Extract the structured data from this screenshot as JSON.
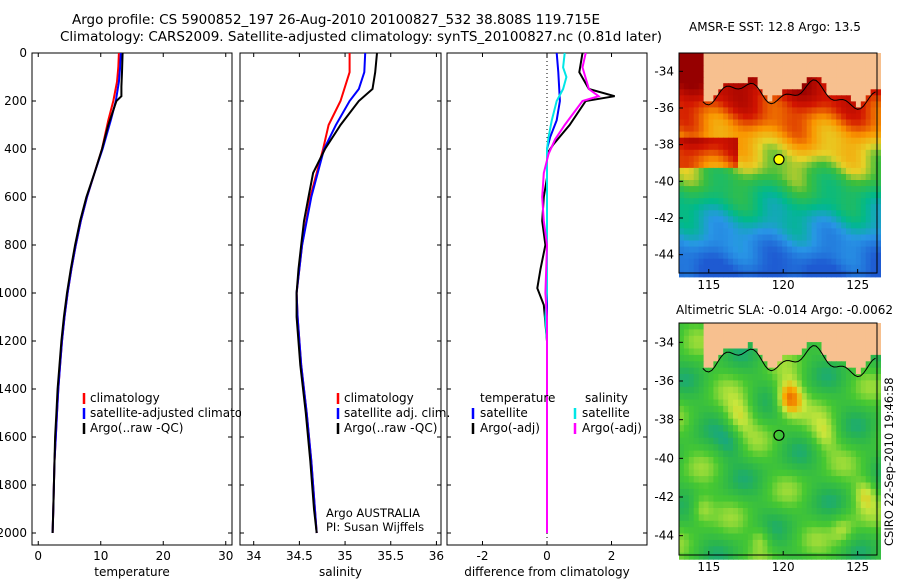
{
  "header": {
    "line1": "Argo profile: CS 5900852_197 26-Aug-2010 20100827_532 38.808S 119.715E",
    "line2": "Climatology: CARS2009. Satellite-adjusted climatology: synTS_20100827.nc (0.81d later)"
  },
  "map_titles": {
    "sst": "AMSR-E SST: 12.8 Argo: 13.5",
    "sla": "Altimetric SLA: -0.014 Argo: -0.0062"
  },
  "stamp": "CSIRO 22-Sep-2010 19:46:58",
  "colors": {
    "climatology": "#ff0000",
    "satellite": "#0000ff",
    "argo": "#000000",
    "sal_satellite": "#00e6e6",
    "sal_argo": "#ff00ff",
    "land": "#f7c08f"
  },
  "chart_data": [
    {
      "type": "line",
      "xlabel": "temperature",
      "ylabel": "",
      "xlim": [
        -1,
        31
      ],
      "ylim": [
        2050,
        0
      ],
      "xticks": [
        0,
        10,
        20,
        30
      ],
      "yticks": [
        0,
        200,
        400,
        600,
        800,
        1000,
        1200,
        1400,
        1600,
        1800,
        2000
      ],
      "legend": [
        "climatology",
        "satellite-adjusted climatology",
        "Argo(..raw -QC)"
      ],
      "series": [
        {
          "name": "climatology",
          "color": "#ff0000",
          "points": [
            [
              12.9,
              0
            ],
            [
              12.8,
              60
            ],
            [
              12.6,
              120
            ],
            [
              12.0,
              200
            ],
            [
              11.2,
              280
            ],
            [
              10.2,
              400
            ],
            [
              9.0,
              500
            ],
            [
              7.8,
              600
            ],
            [
              6.8,
              700
            ],
            [
              6.0,
              800
            ],
            [
              5.3,
              900
            ],
            [
              4.7,
              1000
            ],
            [
              4.2,
              1100
            ],
            [
              3.8,
              1200
            ],
            [
              3.5,
              1300
            ],
            [
              3.2,
              1400
            ],
            [
              3.0,
              1500
            ],
            [
              2.8,
              1600
            ],
            [
              2.6,
              1700
            ],
            [
              2.5,
              1800
            ],
            [
              2.4,
              1900
            ],
            [
              2.3,
              2000
            ]
          ]
        },
        {
          "name": "satellite-adjusted climatology",
          "color": "#0000ff",
          "points": [
            [
              13.2,
              0
            ],
            [
              13.1,
              60
            ],
            [
              12.9,
              120
            ],
            [
              12.4,
              200
            ],
            [
              11.6,
              280
            ],
            [
              10.3,
              400
            ],
            [
              9.0,
              500
            ],
            [
              7.8,
              600
            ],
            [
              6.8,
              700
            ],
            [
              6.0,
              800
            ],
            [
              5.3,
              900
            ],
            [
              4.7,
              1000
            ],
            [
              4.2,
              1100
            ],
            [
              3.8,
              1200
            ],
            [
              3.5,
              1300
            ],
            [
              3.2,
              1400
            ],
            [
              3.0,
              1500
            ],
            [
              2.8,
              1600
            ],
            [
              2.6,
              1700
            ],
            [
              2.5,
              1800
            ],
            [
              2.4,
              1900
            ],
            [
              2.3,
              2000
            ]
          ]
        },
        {
          "name": "Argo(..raw -QC)",
          "color": "#000000",
          "points": [
            [
              13.5,
              0
            ],
            [
              13.4,
              80
            ],
            [
              13.3,
              140
            ],
            [
              13.3,
              180
            ],
            [
              12.5,
              200
            ],
            [
              11.2,
              300
            ],
            [
              10.2,
              400
            ],
            [
              9.0,
              500
            ],
            [
              7.7,
              600
            ],
            [
              6.7,
              700
            ],
            [
              5.9,
              800
            ],
            [
              5.2,
              900
            ],
            [
              4.6,
              1000
            ],
            [
              4.1,
              1100
            ],
            [
              3.7,
              1200
            ],
            [
              3.4,
              1300
            ],
            [
              3.1,
              1400
            ],
            [
              2.9,
              1500
            ],
            [
              2.7,
              1600
            ],
            [
              2.6,
              1700
            ],
            [
              2.5,
              1800
            ],
            [
              2.4,
              1900
            ],
            [
              2.3,
              2000
            ]
          ]
        }
      ]
    },
    {
      "type": "line",
      "xlabel": "salinity",
      "ylabel": "",
      "xlim": [
        33.85,
        36.05
      ],
      "ylim": [
        2050,
        0
      ],
      "xticks": [
        34,
        34.5,
        35,
        35.5,
        36
      ],
      "yticks": [
        0,
        200,
        400,
        600,
        800,
        1000,
        1200,
        1400,
        1600,
        1800,
        2000
      ],
      "legend": [
        "climatology",
        "satellite adj. clim.",
        "Argo(..raw -QC)"
      ],
      "note1": "Argo AUSTRALIA",
      "note2": "PI: Susan Wijffels",
      "series": [
        {
          "name": "climatology",
          "color": "#ff0000",
          "points": [
            [
              35.05,
              0
            ],
            [
              35.05,
              80
            ],
            [
              34.95,
              200
            ],
            [
              34.82,
              300
            ],
            [
              34.76,
              400
            ],
            [
              34.62,
              600
            ],
            [
              34.53,
              800
            ],
            [
              34.47,
              1000
            ],
            [
              34.48,
              1100
            ],
            [
              34.52,
              1300
            ],
            [
              34.58,
              1500
            ],
            [
              34.63,
              1700
            ],
            [
              34.67,
              1900
            ],
            [
              34.69,
              2000
            ]
          ]
        },
        {
          "name": "satellite adj. clim.",
          "color": "#0000ff",
          "points": [
            [
              35.22,
              0
            ],
            [
              35.21,
              80
            ],
            [
              35.15,
              150
            ],
            [
              35.05,
              200
            ],
            [
              34.9,
              300
            ],
            [
              34.77,
              400
            ],
            [
              34.63,
              600
            ],
            [
              34.53,
              800
            ],
            [
              34.47,
              1000
            ],
            [
              34.48,
              1100
            ],
            [
              34.52,
              1300
            ],
            [
              34.58,
              1500
            ],
            [
              34.63,
              1700
            ],
            [
              34.67,
              1900
            ],
            [
              34.69,
              2000
            ]
          ]
        },
        {
          "name": "Argo(..raw -QC)",
          "color": "#000000",
          "points": [
            [
              35.35,
              0
            ],
            [
              35.33,
              80
            ],
            [
              35.3,
              150
            ],
            [
              35.15,
              200
            ],
            [
              34.95,
              300
            ],
            [
              34.78,
              400
            ],
            [
              34.65,
              500
            ],
            [
              34.6,
              600
            ],
            [
              34.55,
              700
            ],
            [
              34.52,
              800
            ],
            [
              34.49,
              900
            ],
            [
              34.47,
              1000
            ],
            [
              34.47,
              1100
            ],
            [
              34.51,
              1300
            ],
            [
              34.57,
              1500
            ],
            [
              34.62,
              1700
            ],
            [
              34.66,
              1900
            ],
            [
              34.69,
              2000
            ]
          ]
        }
      ]
    },
    {
      "type": "line",
      "xlabel": "difference from climatology",
      "ylabel": "",
      "xlim": [
        -3.1,
        3.1
      ],
      "ylim": [
        2050,
        0
      ],
      "xticks": [
        -2,
        0,
        2
      ],
      "yticks": [
        0,
        200,
        400,
        600,
        800,
        1000,
        1200,
        1400,
        1600,
        1800,
        2000
      ],
      "legend_temperature_heading": "temperature",
      "legend_salinity_heading": "salinity",
      "legend_temperature": [
        "satellite",
        "Argo(-adj)"
      ],
      "legend_salinity": [
        "satellite",
        "Argo(-adj)"
      ],
      "series": [
        {
          "name": "satellite",
          "color": "#0000ff",
          "points": [
            [
              0.3,
              0
            ],
            [
              0.35,
              80
            ],
            [
              0.4,
              200
            ],
            [
              0.3,
              280
            ],
            [
              0.1,
              350
            ],
            [
              0,
              400
            ],
            [
              0,
              2000
            ]
          ]
        },
        {
          "name": "Argo(-adj)",
          "color": "#000000",
          "points": [
            [
              1.1,
              0
            ],
            [
              1.0,
              80
            ],
            [
              1.3,
              150
            ],
            [
              2.1,
              180
            ],
            [
              1.2,
              200
            ],
            [
              0.7,
              300
            ],
            [
              0.2,
              380
            ],
            [
              0,
              420
            ],
            [
              0,
              520
            ],
            [
              -0.1,
              600
            ],
            [
              -0.15,
              700
            ],
            [
              -0.05,
              800
            ],
            [
              -0.2,
              900
            ],
            [
              -0.3,
              980
            ],
            [
              -0.1,
              1050
            ],
            [
              0,
              1200
            ],
            [
              0,
              2000
            ]
          ]
        },
        {
          "name": "satellite",
          "color": "#00e6e6",
          "points": [
            [
              0.55,
              0
            ],
            [
              0.5,
              60
            ],
            [
              0.6,
              100
            ],
            [
              0.5,
              150
            ],
            [
              0.3,
              200
            ],
            [
              0.15,
              280
            ],
            [
              0.05,
              350
            ],
            [
              0,
              400
            ],
            [
              0,
              1000
            ],
            [
              -0.05,
              1100
            ],
            [
              0,
              1200
            ],
            [
              0,
              2000
            ]
          ]
        },
        {
          "name": "Argo(-adj)",
          "color": "#ff00ff",
          "points": [
            [
              1.2,
              0
            ],
            [
              1.1,
              60
            ],
            [
              1.3,
              150
            ],
            [
              1.6,
              180
            ],
            [
              1.1,
              200
            ],
            [
              0.55,
              300
            ],
            [
              0.25,
              360
            ],
            [
              0.05,
              420
            ],
            [
              -0.1,
              500
            ],
            [
              -0.15,
              600
            ],
            [
              -0.1,
              700
            ],
            [
              0,
              800
            ],
            [
              -0.05,
              1000
            ],
            [
              0,
              1100
            ],
            [
              0,
              2000
            ]
          ]
        }
      ]
    },
    {
      "type": "heatmap",
      "title": "AMSR-E SST: 12.8 Argo: 13.5",
      "xlim": [
        113,
        126.3
      ],
      "ylim": [
        -45,
        -33
      ],
      "xticks": [
        115,
        120,
        125
      ],
      "yticks": [
        -34,
        -36,
        -38,
        -40,
        -42,
        -44
      ],
      "argo_position": [
        119.715,
        -38.808
      ]
    },
    {
      "type": "heatmap",
      "title": "Altimetric SLA: -0.014 Argo: -0.0062",
      "xlim": [
        113,
        126.3
      ],
      "ylim": [
        -45,
        -33
      ],
      "xticks": [
        115,
        120,
        125
      ],
      "yticks": [
        -34,
        -36,
        -38,
        -40,
        -42,
        -44
      ],
      "argo_position": [
        119.715,
        -38.808
      ]
    }
  ]
}
